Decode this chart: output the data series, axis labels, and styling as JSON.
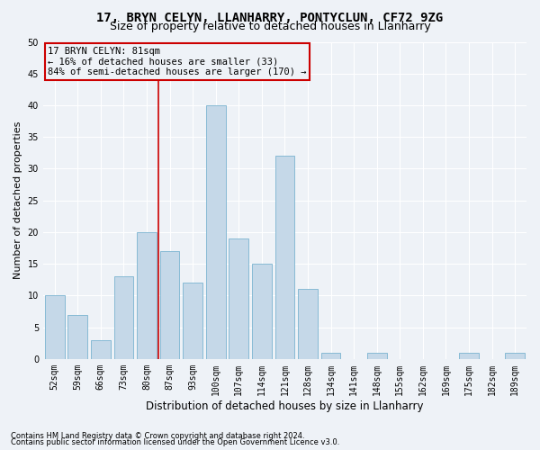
{
  "title": "17, BRYN CELYN, LLANHARRY, PONTYCLUN, CF72 9ZG",
  "subtitle": "Size of property relative to detached houses in Llanharry",
  "xlabel": "Distribution of detached houses by size in Llanharry",
  "ylabel": "Number of detached properties",
  "categories": [
    "52sqm",
    "59sqm",
    "66sqm",
    "73sqm",
    "80sqm",
    "87sqm",
    "93sqm",
    "100sqm",
    "107sqm",
    "114sqm",
    "121sqm",
    "128sqm",
    "134sqm",
    "141sqm",
    "148sqm",
    "155sqm",
    "162sqm",
    "169sqm",
    "175sqm",
    "182sqm",
    "189sqm"
  ],
  "values": [
    10,
    7,
    3,
    13,
    20,
    17,
    12,
    40,
    19,
    15,
    32,
    11,
    1,
    0,
    1,
    0,
    0,
    0,
    1,
    0,
    1
  ],
  "bar_color": "#c5d8e8",
  "bar_edge_color": "#7ab3d0",
  "vline_x_idx": 4,
  "vline_color": "#cc0000",
  "annotation_text": "17 BRYN CELYN: 81sqm\n← 16% of detached houses are smaller (33)\n84% of semi-detached houses are larger (170) →",
  "annotation_box_color": "#cc0000",
  "ylim": [
    0,
    50
  ],
  "yticks": [
    0,
    5,
    10,
    15,
    20,
    25,
    30,
    35,
    40,
    45,
    50
  ],
  "footnote1": "Contains HM Land Registry data © Crown copyright and database right 2024.",
  "footnote2": "Contains public sector information licensed under the Open Government Licence v3.0.",
  "background_color": "#eef2f7",
  "grid_color": "#ffffff",
  "title_fontsize": 10,
  "subtitle_fontsize": 9,
  "tick_fontsize": 7,
  "ylabel_fontsize": 8,
  "xlabel_fontsize": 8.5,
  "annot_fontsize": 7.5,
  "footnote_fontsize": 6
}
